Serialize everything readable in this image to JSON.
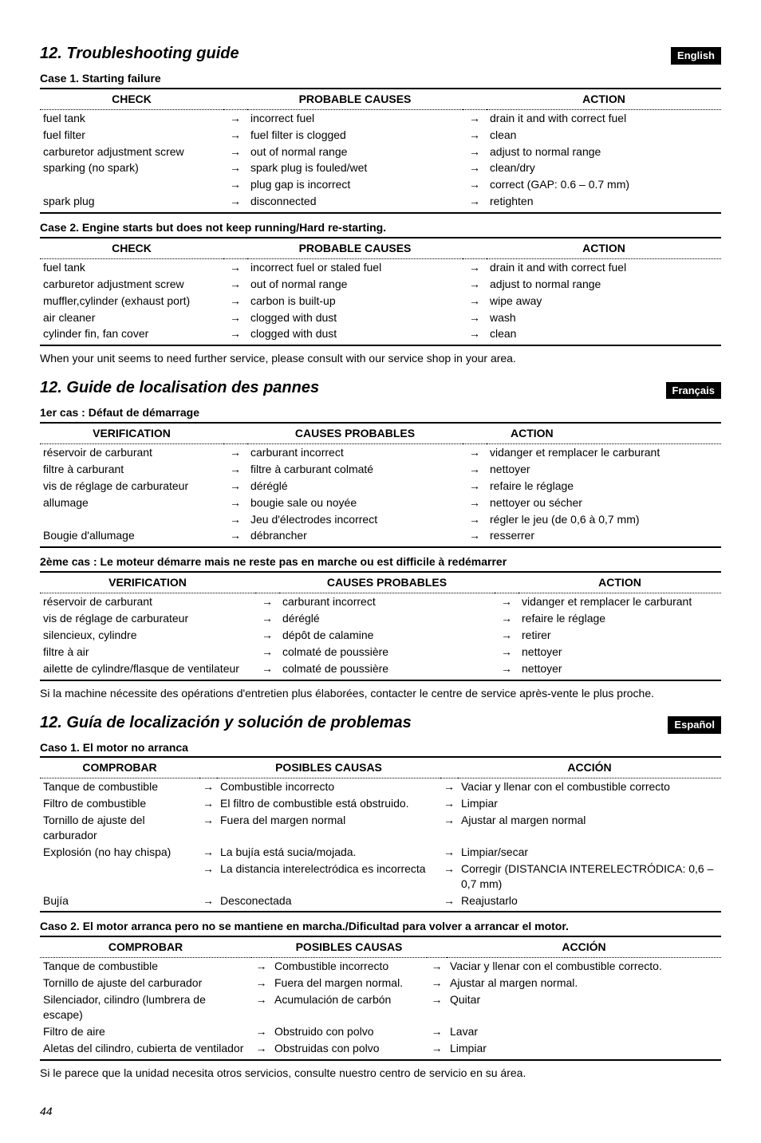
{
  "page_number": "44",
  "sections": {
    "en": {
      "heading": "12. Troubleshooting guide",
      "lang_tag": "English",
      "case1_title": "Case 1. Starting failure",
      "headers": {
        "check": "CHECK",
        "cause": "PROBABLE CAUSES",
        "action": "ACTION"
      },
      "case1_rows": [
        {
          "check": "fuel tank",
          "cause": "incorrect fuel",
          "action": "drain it and with correct fuel"
        },
        {
          "check": "fuel filter",
          "cause": "fuel filter is clogged",
          "action": "clean"
        },
        {
          "check": "carburetor adjustment screw",
          "cause": "out of normal range",
          "action": "adjust to normal range"
        },
        {
          "check": "sparking (no spark)",
          "cause": "spark plug is fouled/wet",
          "action": "clean/dry"
        },
        {
          "check": "",
          "cause": "plug gap is incorrect",
          "action": "correct (GAP: 0.6 – 0.7 mm)"
        },
        {
          "check": "spark plug",
          "cause": "disconnected",
          "action": "retighten"
        }
      ],
      "case2_title": "Case 2. Engine starts but does not keep running/Hard re-starting.",
      "case2_rows": [
        {
          "check": "fuel tank",
          "cause": "incorrect fuel or staled fuel",
          "action": "drain it and with correct fuel"
        },
        {
          "check": "carburetor adjustment screw",
          "cause": "out of normal range",
          "action": "adjust to normal range"
        },
        {
          "check": "muffler,cylinder (exhaust port)",
          "cause": "carbon is built-up",
          "action": "wipe away"
        },
        {
          "check": "air cleaner",
          "cause": "clogged with dust",
          "action": "wash"
        },
        {
          "check": "cylinder fin, fan cover",
          "cause": "clogged with dust",
          "action": "clean"
        }
      ],
      "note": "When your unit seems to need further service, please consult with our service shop in your area."
    },
    "fr": {
      "heading": "12. Guide de localisation des pannes",
      "lang_tag": "Français",
      "case1_title": "1er cas : Défaut de démarrage",
      "headers": {
        "check": "VERIFICATION",
        "cause": "CAUSES PROBABLES",
        "action": "ACTION"
      },
      "case1_rows": [
        {
          "check": "réservoir de carburant",
          "cause": "carburant incorrect",
          "action": "vidanger et remplacer le carburant"
        },
        {
          "check": "filtre à carburant",
          "cause": "filtre à carburant colmaté",
          "action": "nettoyer"
        },
        {
          "check": "vis de réglage de carburateur",
          "cause": "déréglé",
          "action": "refaire le réglage"
        },
        {
          "check": "allumage",
          "cause": "bougie sale ou noyée",
          "action": "nettoyer ou sécher"
        },
        {
          "check": "",
          "cause": "Jeu d'électrodes incorrect",
          "action": "régler le jeu (de 0,6 à 0,7 mm)"
        },
        {
          "check": "Bougie d'allumage",
          "cause": "débrancher",
          "action": "resserrer"
        }
      ],
      "case2_title": "2ème cas : Le moteur démarre mais ne reste pas en marche ou est difficile à redémarrer",
      "case2_rows": [
        {
          "check": "réservoir de carburant",
          "cause": "carburant incorrect",
          "action": "vidanger et remplacer le carburant"
        },
        {
          "check": "vis de réglage de carburateur",
          "cause": "déréglé",
          "action": "refaire le réglage"
        },
        {
          "check": "silencieux, cylindre",
          "cause": "dépôt de calamine",
          "action": "retirer"
        },
        {
          "check": "filtre à air",
          "cause": "colmaté de poussière",
          "action": "nettoyer"
        },
        {
          "check": "ailette de cylindre/flasque de ventilateur",
          "cause": "colmaté  de poussière",
          "action": "nettoyer"
        }
      ],
      "note": "Si la machine nécessite des opérations d'entretien plus élaborées, contacter le centre de service après-vente le plus proche."
    },
    "es": {
      "heading": "12. Guía de localización y solución de problemas",
      "lang_tag": "Español",
      "case1_title": "Caso 1. El motor no arranca",
      "headers": {
        "check": "COMPROBAR",
        "cause": "POSIBLES CAUSAS",
        "action": "ACCIÓN"
      },
      "case1_rows": [
        {
          "check": "Tanque de combustible",
          "cause": "Combustible incorrecto",
          "action": "Vaciar y llenar con el combustible correcto"
        },
        {
          "check": "Filtro de combustible",
          "cause": "El filtro de combustible está obstruido.",
          "action": "Limpiar"
        },
        {
          "check": "Tornillo de ajuste del carburador",
          "cause": "Fuera del margen normal",
          "action": "Ajustar al margen normal"
        },
        {
          "check": "Explosión (no hay chispa)",
          "cause": "La bujía está sucia/mojada.",
          "action": "Limpiar/secar"
        },
        {
          "check": "",
          "cause": "La distancia interelectródica es incorrecta",
          "action": "Corregir (DISTANCIA INTERELECTRÓDICA: 0,6 – 0,7 mm)"
        },
        {
          "check": "Bujía",
          "cause": "Desconectada",
          "action": "Reajustarlo"
        }
      ],
      "case2_title": "Caso 2. El motor arranca pero no se mantiene en marcha./Dificultad para volver a arrancar el motor.",
      "case2_rows": [
        {
          "check": "Tanque de combustible",
          "cause": "Combustible incorrecto",
          "action": "Vaciar y llenar con el combustible correcto."
        },
        {
          "check": "Tornillo de ajuste del carburador",
          "cause": "Fuera del margen normal.",
          "action": "Ajustar al margen normal."
        },
        {
          "check": "Silenciador, cilindro (lumbrera de escape)",
          "cause": "Acumulación de carbón",
          "action": "Quitar"
        },
        {
          "check": "Filtro de aire",
          "cause": "Obstruido con polvo",
          "action": "Lavar"
        },
        {
          "check": "Aletas del cilindro, cubierta de ventilador",
          "cause": "Obstruidas con polvo",
          "action": "Limpiar"
        }
      ],
      "note": "Si le parece que la unidad necesita otros servicios, consulte nuestro centro de servicio en su área."
    }
  }
}
